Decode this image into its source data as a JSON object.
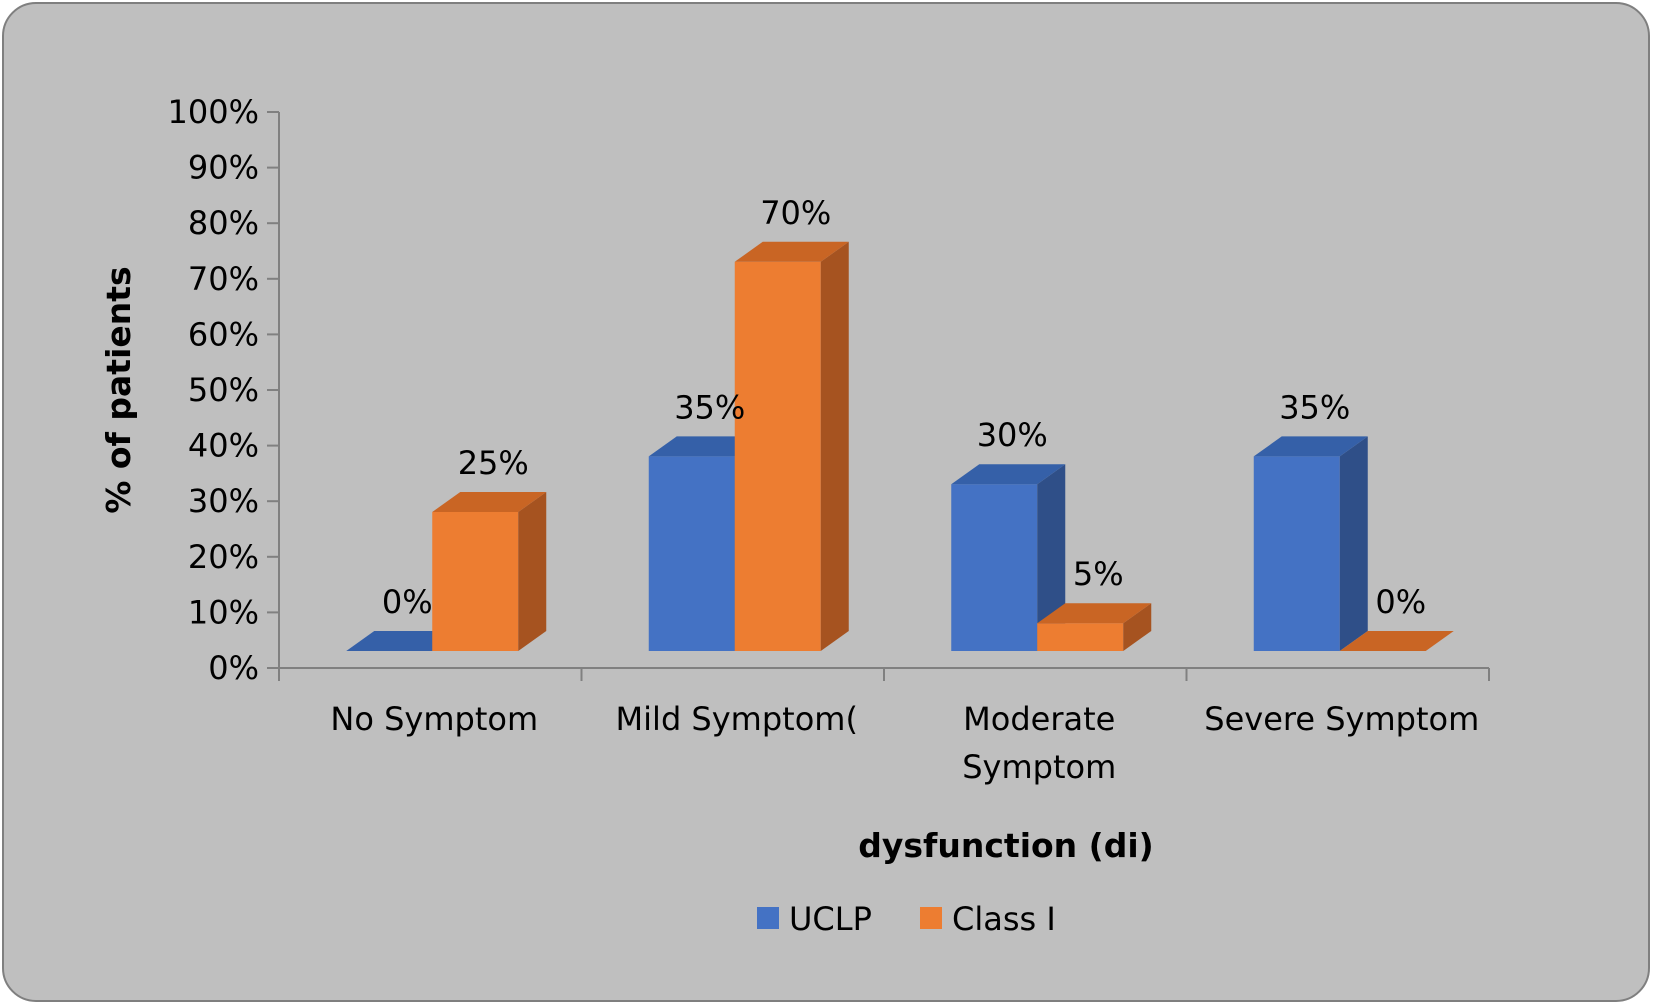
{
  "chart_data": {
    "type": "bar",
    "style": "3d-clustered",
    "categories": [
      [
        "No Symptom"
      ],
      [
        "Mild Symptom("
      ],
      [
        "Moderate",
        "Symptom"
      ],
      [
        "Severe Symptom"
      ]
    ],
    "series": [
      {
        "name": "UCLP",
        "values": [
          0,
          35,
          30,
          35
        ],
        "labels": [
          "0%",
          "35%",
          "30%",
          "35%"
        ],
        "color": "#4472c4",
        "side_color": "#2f4f88",
        "top_color": "#3560a8"
      },
      {
        "name": "Class I",
        "values": [
          25,
          70,
          5,
          0
        ],
        "labels": [
          "25%",
          "70%",
          "5%",
          "0%"
        ],
        "color": "#ed7d31",
        "side_color": "#a65320",
        "top_color": "#c96524"
      }
    ],
    "xlabel": "dysfunction (di)",
    "ylabel": "% of patients",
    "ylim": [
      0,
      100
    ],
    "yticks": [
      0,
      10,
      20,
      30,
      40,
      50,
      60,
      70,
      80,
      90,
      100
    ],
    "ytick_labels": [
      "0%",
      "10%",
      "20%",
      "30%",
      "40%",
      "50%",
      "60%",
      "70%",
      "80%",
      "90%",
      "100%"
    ],
    "grid": false,
    "legend_position": "bottom"
  }
}
